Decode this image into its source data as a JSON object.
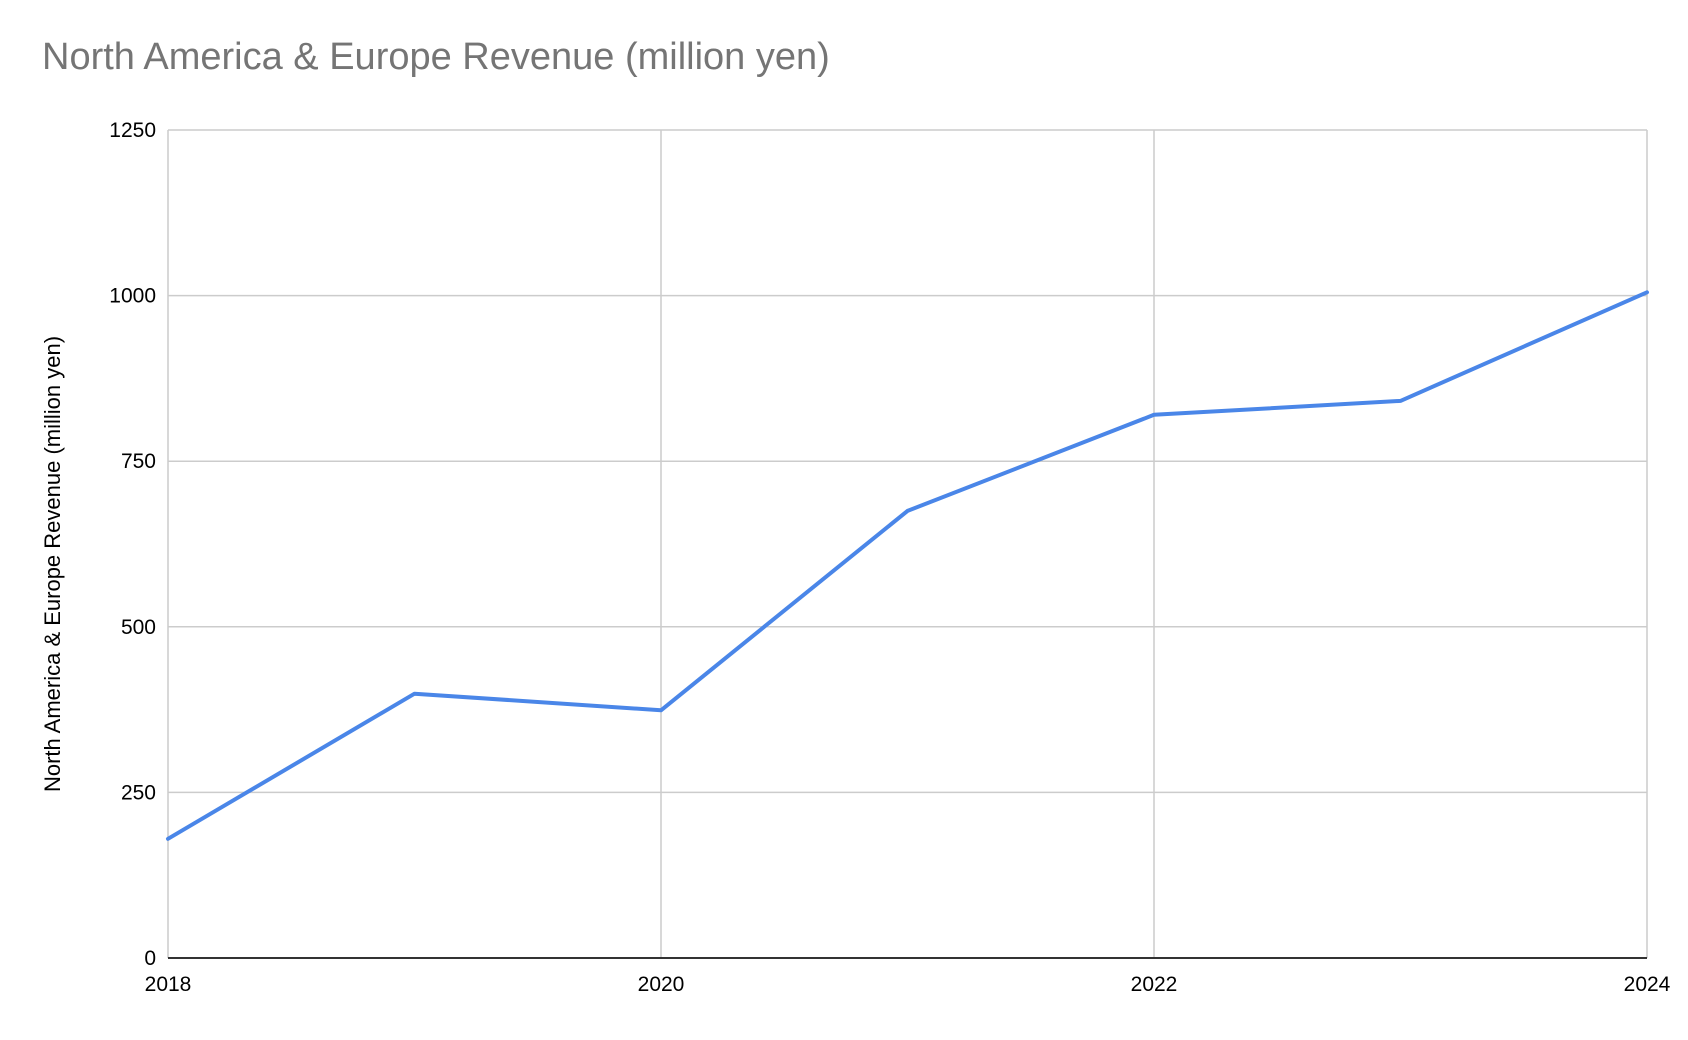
{
  "chart_data": {
    "type": "line",
    "title": "North America & Europe Revenue (million yen)",
    "xlabel": "",
    "ylabel": "North America & Europe Revenue (million yen)",
    "xlim": [
      2018,
      2024
    ],
    "ylim": [
      0,
      1250
    ],
    "x_ticks": [
      "2018",
      "2020",
      "2022",
      "2024"
    ],
    "y_ticks": [
      "0",
      "250",
      "500",
      "750",
      "1000",
      "1250"
    ],
    "grid": true,
    "legend": "none",
    "series": [
      {
        "color": "#4a86e8",
        "x": [
          2018,
          2019,
          2020,
          2021,
          2022,
          2023,
          2024
        ],
        "values": [
          180,
          399,
          374,
          675,
          820,
          841,
          1005
        ]
      }
    ]
  }
}
